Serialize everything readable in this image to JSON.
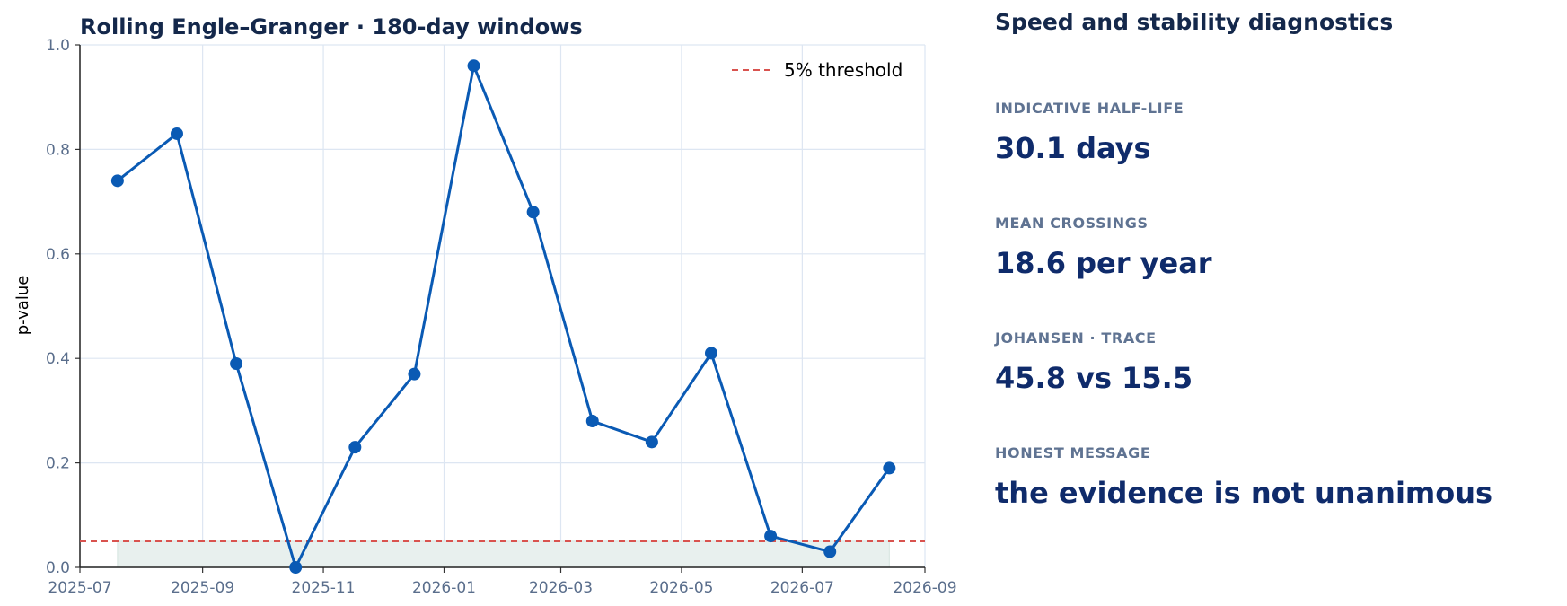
{
  "chart_data": {
    "type": "line",
    "title": "Rolling Engle–Granger · 180-day windows",
    "xlabel": "",
    "ylabel": "p-value",
    "x": [
      "2025-07-20",
      "2025-08-19",
      "2025-09-18",
      "2025-10-18",
      "2025-11-17",
      "2025-12-17",
      "2026-01-16",
      "2026-02-15",
      "2026-03-17",
      "2026-04-16",
      "2026-05-16",
      "2026-06-15",
      "2026-07-15",
      "2026-08-14"
    ],
    "series": [
      {
        "values": [
          0.74,
          0.83,
          0.39,
          0.0,
          0.23,
          0.37,
          0.96,
          0.68,
          0.28,
          0.24,
          0.41,
          0.06,
          0.03,
          0.19
        ],
        "color": "#0a5ab4"
      }
    ],
    "threshold": {
      "value": 0.05,
      "label": "5% threshold",
      "color": "#d9534f"
    },
    "shaded_band": {
      "from": "2025-07-20",
      "to": "2026-08-14",
      "top": 0.05,
      "color": "#e8f0ee"
    },
    "xlim": [
      "2025-07-01",
      "2026-09-01"
    ],
    "ylim": [
      0,
      1
    ],
    "x_ticks": [
      "2025-07",
      "2025-09",
      "2025-11",
      "2026-01",
      "2026-03",
      "2026-05",
      "2026-07",
      "2026-09"
    ],
    "y_ticks": [
      "0.0",
      "0.2",
      "0.4",
      "0.6",
      "0.8",
      "1.0"
    ],
    "grid": true,
    "legend_position": "top-right"
  },
  "panel": {
    "title": "Speed and stability diagnostics",
    "metrics": [
      {
        "label": "INDICATIVE HALF-LIFE",
        "value": "30.1 days"
      },
      {
        "label": "MEAN CROSSINGS",
        "value": "18.6 per year"
      },
      {
        "label": "JOHANSEN · TRACE",
        "value": "45.8 vs 15.5"
      },
      {
        "label": "HONEST MESSAGE",
        "value": "the evidence is not unanimous"
      }
    ]
  }
}
